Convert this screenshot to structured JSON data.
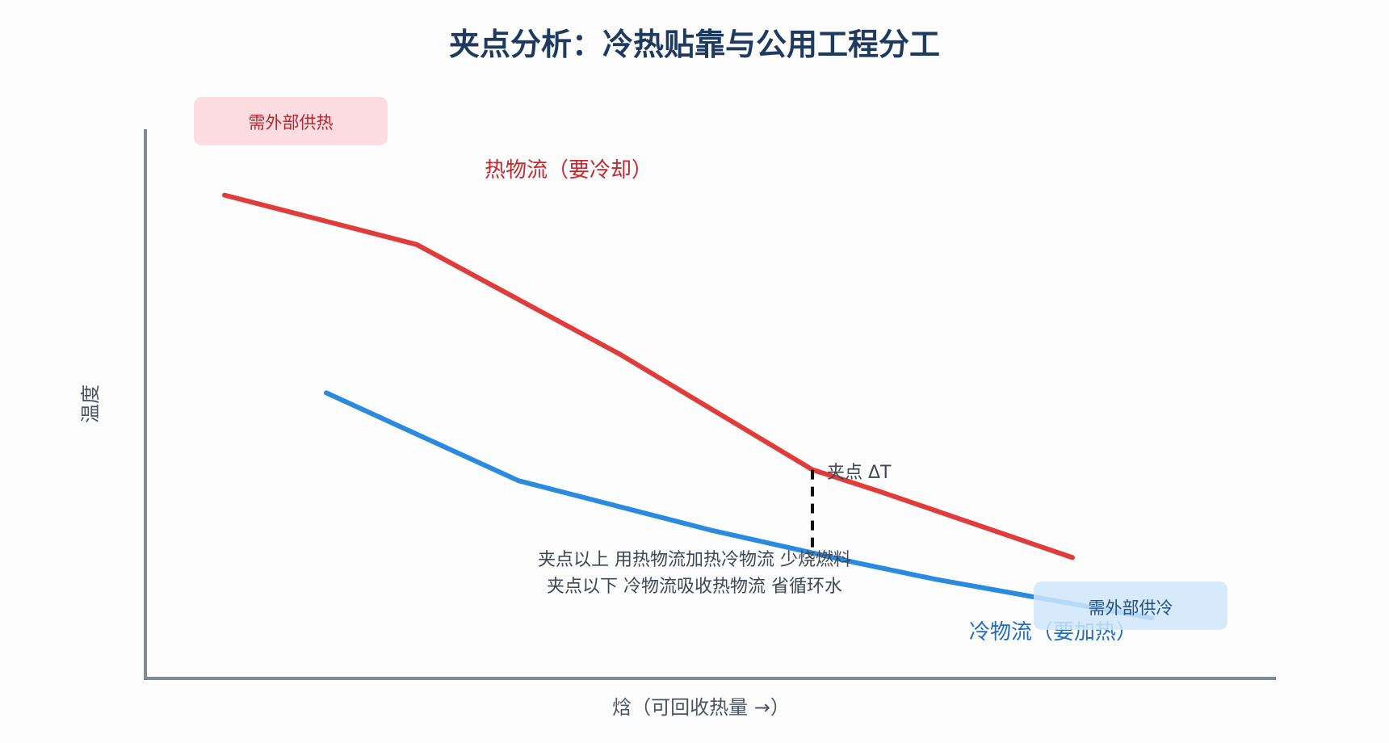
{
  "chart_data": {
    "type": "line",
    "title": "夹点分析：冷热贴靠与公用工程分工",
    "xlabel": "焓（可回收热量 →）",
    "ylabel": "温度",
    "xlim": [
      0,
      100
    ],
    "ylim": [
      0,
      100
    ],
    "grid": false,
    "series": [
      {
        "name": "热物流（要冷却）",
        "color": "#e03c3c",
        "x": [
          7,
          24,
          42,
          59,
          65,
          82
        ],
        "y": [
          88,
          79,
          59,
          38,
          34,
          22
        ]
      },
      {
        "name": "冷物流（要加热）",
        "color": "#2a8ae0",
        "x": [
          16,
          33,
          50,
          63,
          70,
          89
        ],
        "y": [
          52,
          36,
          27,
          21,
          18,
          11
        ]
      }
    ],
    "annotations": {
      "pinch": {
        "x": 59,
        "y_top": 38,
        "y_bottom": 23,
        "label": "夹点 ΔT"
      },
      "note_lines": [
        "夹点以上 用热物流加热冷物流 少烧燃料",
        "夹点以下 冷物流吸收热物流 省循环水"
      ],
      "hot_utility": {
        "label": "需外部供热",
        "bg": "#fddde0",
        "fg": "#b8272f"
      },
      "cold_utility": {
        "label": "需外部供冷",
        "bg": "#cfe6fb",
        "fg": "#1f4f86"
      }
    }
  }
}
